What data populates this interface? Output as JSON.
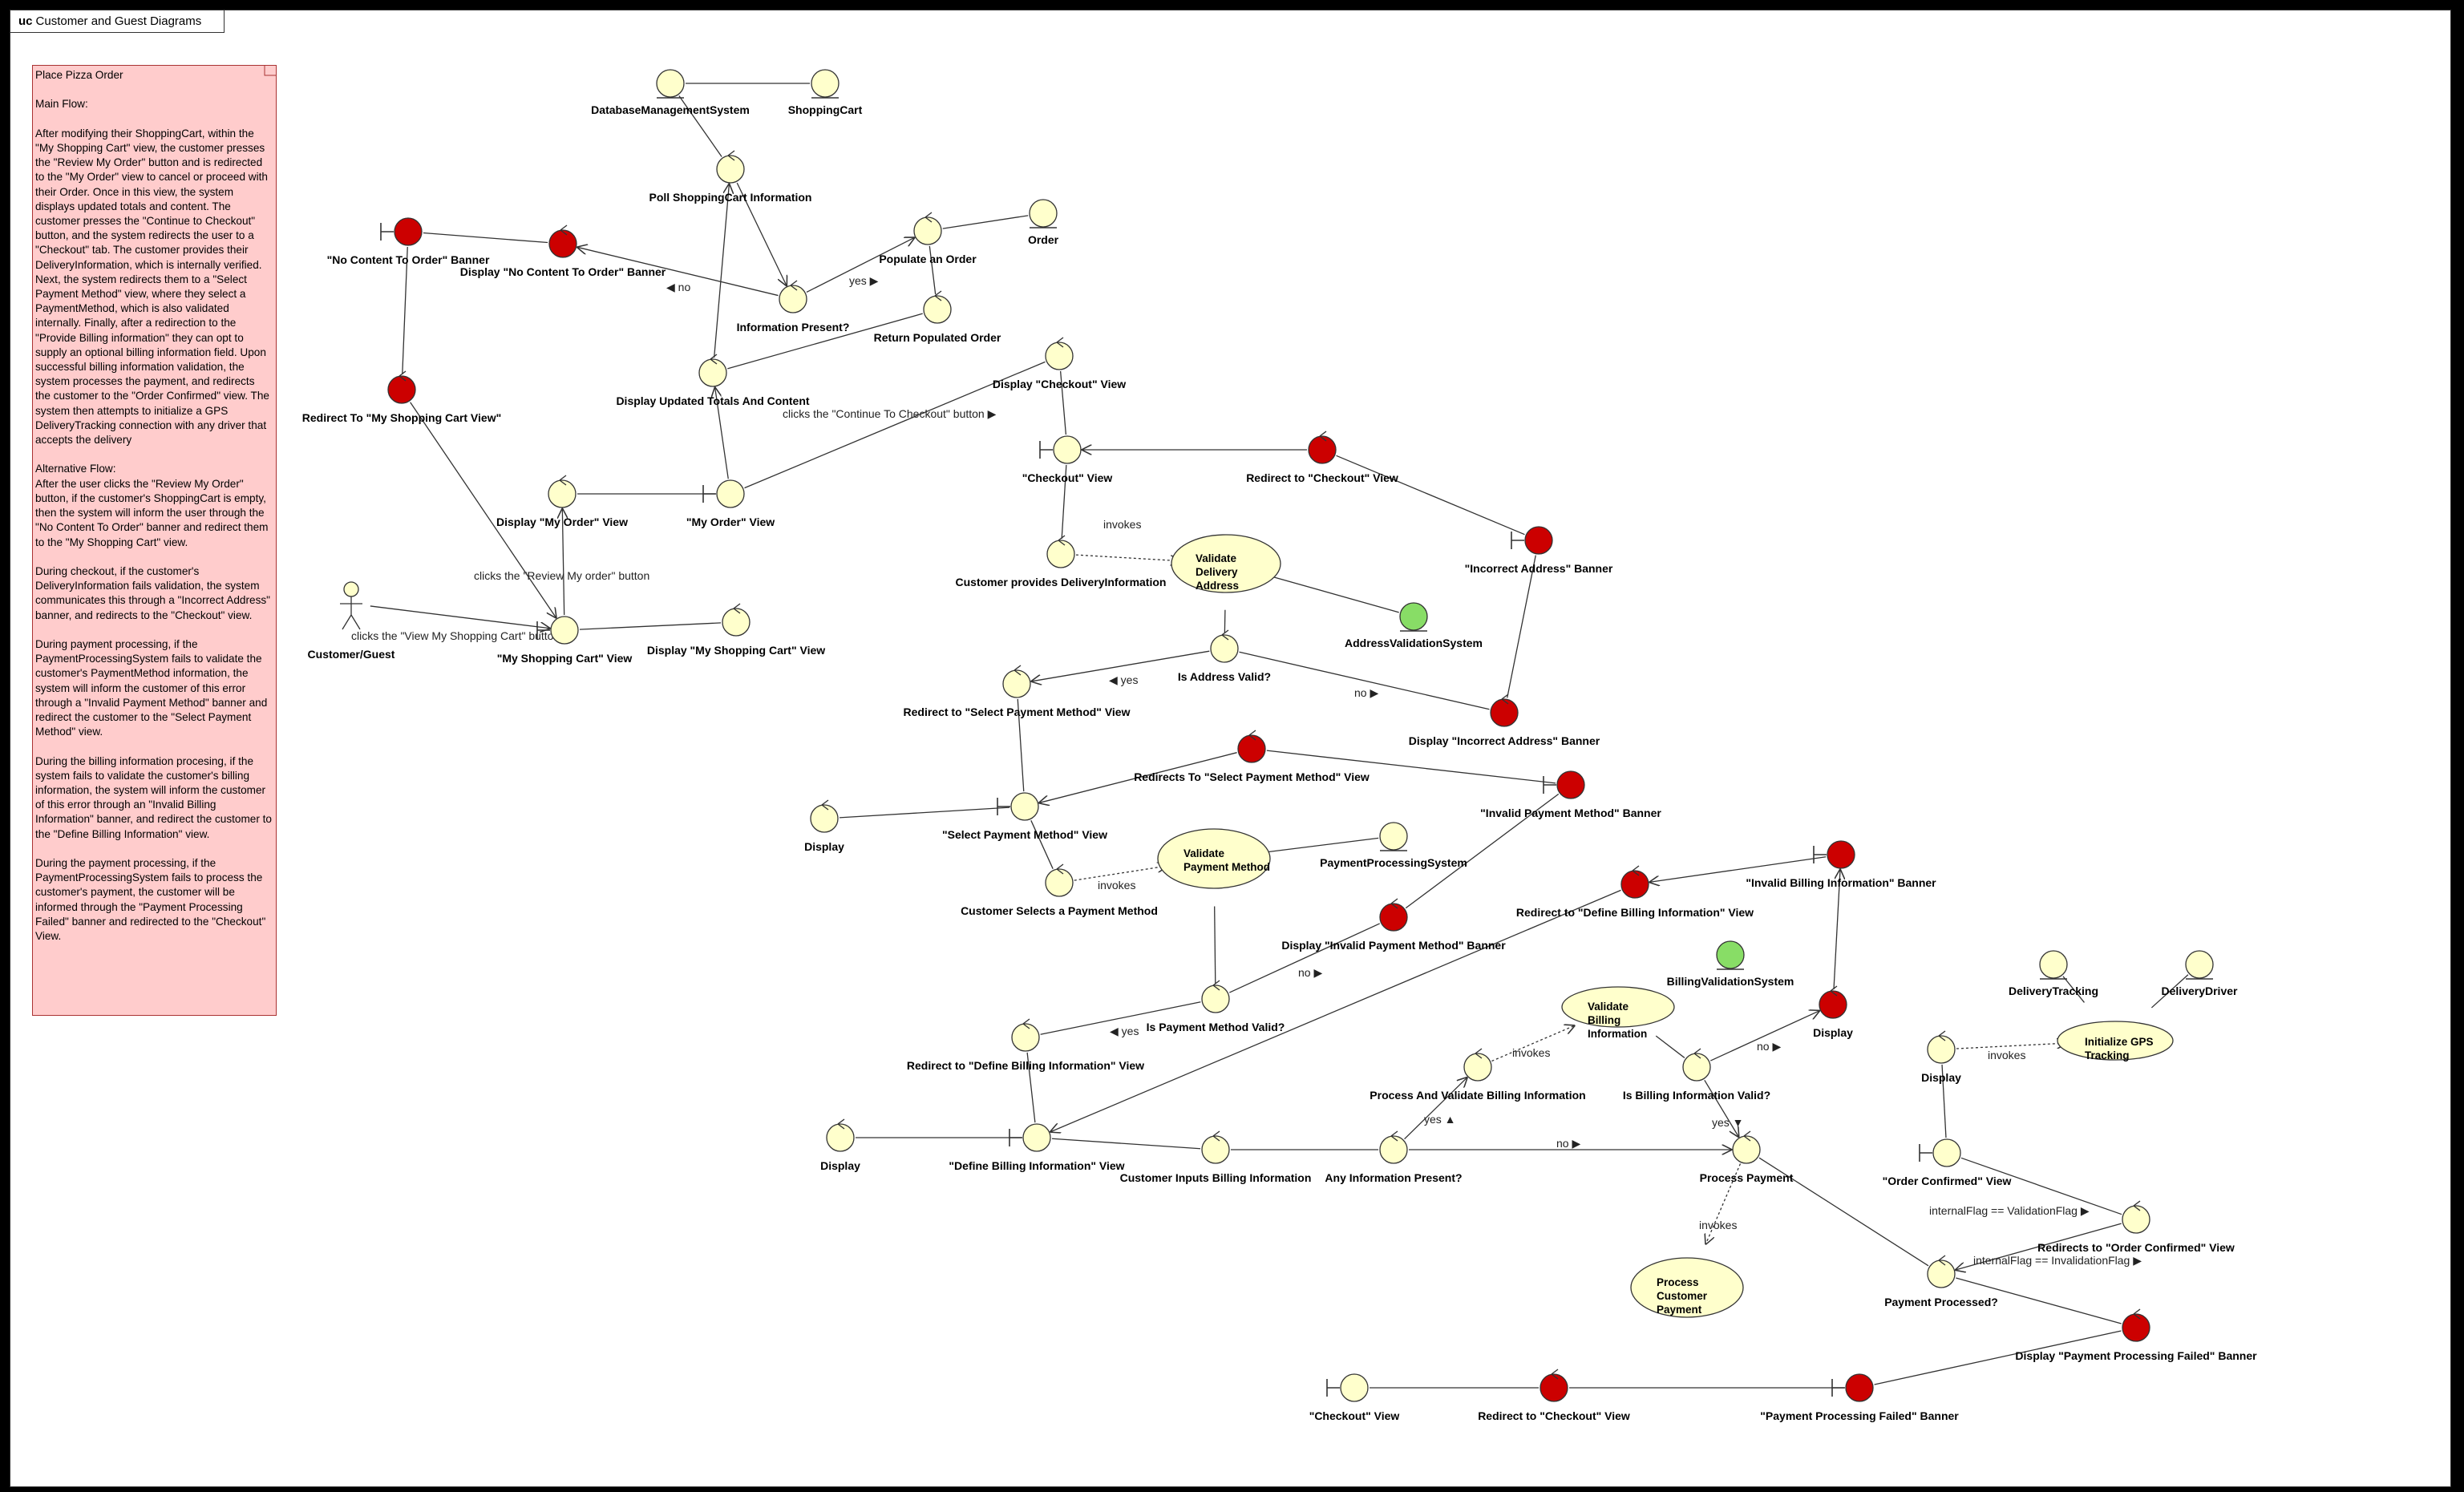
{
  "frame": {
    "keyword": "uc",
    "title": "Customer and Guest Diagrams"
  },
  "note": {
    "text": "Place Pizza Order\n\nMain Flow:\n\nAfter modifying their ShoppingCart, within the \"My Shopping Cart\" view, the customer presses the \"Review My Order\" button and is redirected to the \"My Order\" view to cancel or proceed with their Order. Once in this view, the system displays updated totals and content. The customer presses the \"Continue to Checkout\" button, and the system redirects the user to a \"Checkout\" tab. The customer provides their DeliveryInformation, which is internally verified. Next, the system redirects them to a \"Select Payment Method\" view, where they select a PaymentMethod, which is also validated internally. Finally, after a redirection to the \"Provide Billing information\" they can opt to supply an optional billing information field. Upon successful billing information validation, the system processes the payment, and redirects the customer to the \"Order Confirmed\" view. The system then attempts to initialize a GPS DeliveryTracking connection with any driver that accepts the delivery\n\nAlternative Flow:\nAfter the user clicks the \"Review My Order\" button, if the customer's ShoppingCart is empty, then the system will inform the user through the \"No Content To Order\" banner and redirect them to the \"My Shopping Cart\" view.\n\nDuring checkout, if the customer's DeliveryInformation fails validation, the system communicates this through a \"Incorrect Address\" banner, and redirects to the \"Checkout\" view.\n\nDuring payment processing, if the PaymentProcessingSystem fails to validate the customer's PaymentMethod information, the system will inform the customer of this error through a \"Invalid Payment Method\" banner and redirect the customer to the \"Select Payment Method\" view.\n\nDuring the billing information procesing, if the system fails to validate the customer's billing information, the system will inform the customer of this error through an \"Invalid Billing Information\" banner, and redirect the customer to the \"Define Billing Information\" view.\n\nDuring the payment processing, if the PaymentProcessingSystem fails to process the customer's payment, the customer will be informed through the \"Payment Processing Failed\" banner and redirected to the \"Checkout\" View."
  },
  "colors": {
    "control": "#ffffcc",
    "error": "#cc0000",
    "system": "#88dd66",
    "usecase": "#ffffcc",
    "stroke": "#333333"
  },
  "nodes": [
    {
      "id": "actor",
      "kind": "actor",
      "label": "Customer/Guest"
    },
    {
      "id": "my_cart_view",
      "kind": "boundary",
      "label": "\"My Shopping Cart\" View"
    },
    {
      "id": "disp_my_cart",
      "kind": "control",
      "label": "Display \"My Shopping Cart\" View"
    },
    {
      "id": "disp_my_order",
      "kind": "control",
      "label": "Display \"My Order\" View"
    },
    {
      "id": "my_order_view",
      "kind": "boundary",
      "label": "\"My Order\" View"
    },
    {
      "id": "redir_my_cart",
      "kind": "control-red",
      "label": "Redirect To \"My Shopping Cart View\""
    },
    {
      "id": "no_content_banner",
      "kind": "boundary-red",
      "label": "\"No Content To Order\" Banner"
    },
    {
      "id": "disp_no_content",
      "kind": "control-red",
      "label": "Display \"No Content To Order\" Banner"
    },
    {
      "id": "dbms",
      "kind": "entity",
      "label": "DatabaseManagementSystem"
    },
    {
      "id": "shopping_cart",
      "kind": "entity",
      "label": "ShoppingCart"
    },
    {
      "id": "poll_cart",
      "kind": "control",
      "label": "Poll ShoppingCart Information"
    },
    {
      "id": "info_present",
      "kind": "control",
      "label": "Information Present?"
    },
    {
      "id": "populate_order",
      "kind": "control",
      "label": "Populate an Order"
    },
    {
      "id": "order",
      "kind": "entity",
      "label": "Order"
    },
    {
      "id": "return_order",
      "kind": "control",
      "label": "Return Populated Order"
    },
    {
      "id": "disp_totals",
      "kind": "control",
      "label": "Display Updated Totals And Content"
    },
    {
      "id": "disp_checkout",
      "kind": "control",
      "label": "Display \"Checkout\" View"
    },
    {
      "id": "checkout_view",
      "kind": "boundary",
      "label": "\"Checkout\" View"
    },
    {
      "id": "redir_checkout",
      "kind": "control-red",
      "label": "Redirect to \"Checkout\" View"
    },
    {
      "id": "incorrect_addr_banner",
      "kind": "boundary-red",
      "label": "\"Incorrect Address\" Banner"
    },
    {
      "id": "provides_delivery",
      "kind": "control",
      "label": "Customer provides DeliveryInformation"
    },
    {
      "id": "uc_validate_delivery",
      "kind": "usecase",
      "label": "Validate Delivery Address"
    },
    {
      "id": "addr_validation",
      "kind": "entity-green",
      "label": "AddressValidationSystem"
    },
    {
      "id": "addr_valid",
      "kind": "control",
      "label": "Is Address Valid?"
    },
    {
      "id": "disp_incorrect_addr",
      "kind": "control-red",
      "label": "Display \"Incorrect Address\" Banner"
    },
    {
      "id": "redir_select_pm",
      "kind": "control",
      "label": "Redirect to \"Select Payment Method\" View"
    },
    {
      "id": "redir_select_pm_red",
      "kind": "control-red",
      "label": "Redirects To \"Select Payment Method\" View"
    },
    {
      "id": "invalid_pm_banner",
      "kind": "boundary-red",
      "label": "\"Invalid Payment Method\" Banner"
    },
    {
      "id": "disp_1",
      "kind": "control",
      "label": "Display"
    },
    {
      "id": "select_pm_view",
      "kind": "boundary",
      "label": "\"Select Payment Method\" View"
    },
    {
      "id": "selects_pm",
      "kind": "control",
      "label": "Customer Selects a Payment Method"
    },
    {
      "id": "uc_validate_pm",
      "kind": "usecase",
      "label": "Validate Payment Method"
    },
    {
      "id": "pps",
      "kind": "entity",
      "label": "PaymentProcessingSystem"
    },
    {
      "id": "disp_invalid_pm",
      "kind": "control-red",
      "label": "Display \"Invalid Payment Method\" Banner"
    },
    {
      "id": "pm_valid",
      "kind": "control",
      "label": "Is Payment Method Valid?"
    },
    {
      "id": "redir_define_billing",
      "kind": "control",
      "label": "Redirect to \"Define Billing Information\" View"
    },
    {
      "id": "redir_define_billing_red",
      "kind": "control-red",
      "label": "Redirect to \"Define Billing Information\" View"
    },
    {
      "id": "invalid_billing_banner",
      "kind": "boundary-red",
      "label": "\"Invalid Billing Information\" Banner"
    },
    {
      "id": "billing_validation",
      "kind": "entity-green",
      "label": "BillingValidationSystem"
    },
    {
      "id": "uc_validate_billing",
      "kind": "usecase",
      "label": "Validate Billing Information"
    },
    {
      "id": "disp_red_billing",
      "kind": "control-red",
      "label": "Display"
    },
    {
      "id": "disp_2",
      "kind": "control",
      "label": "Display"
    },
    {
      "id": "define_billing_view",
      "kind": "boundary",
      "label": "\"Define Billing Information\" View"
    },
    {
      "id": "inputs_billing",
      "kind": "control",
      "label": "Customer Inputs Billing Information"
    },
    {
      "id": "any_info",
      "kind": "control",
      "label": "Any Information Present?"
    },
    {
      "id": "process_validate_billing",
      "kind": "control",
      "label": "Process And Validate Billing Information"
    },
    {
      "id": "billing_valid",
      "kind": "control",
      "label": "Is Billing Information Valid?"
    },
    {
      "id": "process_payment",
      "kind": "control",
      "label": "Process Payment"
    },
    {
      "id": "uc_process_payment",
      "kind": "usecase",
      "label": "Process Customer Payment"
    },
    {
      "id": "delivery_tracking",
      "kind": "entity",
      "label": "DeliveryTracking"
    },
    {
      "id": "delivery_driver",
      "kind": "entity",
      "label": "DeliveryDriver"
    },
    {
      "id": "disp_3",
      "kind": "control",
      "label": "Display"
    },
    {
      "id": "uc_init_gps",
      "kind": "usecase",
      "label": "Initialize GPS Tracking"
    },
    {
      "id": "order_confirmed_view",
      "kind": "boundary",
      "label": "\"Order Confirmed\" View"
    },
    {
      "id": "redir_order_confirmed",
      "kind": "control",
      "label": "Redirects to \"Order Confirmed\" View"
    },
    {
      "id": "payment_processed",
      "kind": "control",
      "label": "Payment Processed?"
    },
    {
      "id": "disp_payment_failed",
      "kind": "control-red",
      "label": "Display \"Payment Processing Failed\" Banner"
    },
    {
      "id": "checkout_view_2",
      "kind": "boundary",
      "label": "\"Checkout\" View"
    },
    {
      "id": "redir_checkout_2",
      "kind": "control-red",
      "label": "Redirect to \"Checkout\" View"
    },
    {
      "id": "payment_failed_banner",
      "kind": "boundary-red",
      "label": "\"Payment Processing Failed\" Banner"
    }
  ],
  "edge_labels": [
    {
      "id": "e_click_cart",
      "text": "clicks the \"View My Shopping Cart\" button",
      "arrow": "▶"
    },
    {
      "id": "e_click_review",
      "text": "clicks the \"Review My order\" button",
      "arrow": ""
    },
    {
      "id": "e_click_continue",
      "text": "clicks the \"Continue To Checkout\" button",
      "arrow": "▶"
    },
    {
      "id": "e_no_1",
      "text": "no",
      "arrow": "◀"
    },
    {
      "id": "e_yes_1",
      "text": "yes",
      "arrow": "▶"
    },
    {
      "id": "e_invokes_1",
      "text": "invokes",
      "arrow": ""
    },
    {
      "id": "e_yes_2",
      "text": "yes",
      "arrow": "◀"
    },
    {
      "id": "e_no_2",
      "text": "no",
      "arrow": "▶"
    },
    {
      "id": "e_invokes_2",
      "text": "invokes",
      "arrow": ""
    },
    {
      "id": "e_no_3",
      "text": "no",
      "arrow": "▶"
    },
    {
      "id": "e_yes_3",
      "text": "yes",
      "arrow": "◀"
    },
    {
      "id": "e_invokes_3",
      "text": "invokes",
      "arrow": ""
    },
    {
      "id": "e_no_4",
      "text": "no",
      "arrow": "▶"
    },
    {
      "id": "e_yes_4",
      "text": "yes",
      "arrow": "▲"
    },
    {
      "id": "e_yes_5",
      "text": "yes",
      "arrow": "▼"
    },
    {
      "id": "e_no_5",
      "text": "no",
      "arrow": "▶"
    },
    {
      "id": "e_invokes_4",
      "text": "invokes",
      "arrow": ""
    },
    {
      "id": "e_invokes_5",
      "text": "invokes",
      "arrow": ""
    },
    {
      "id": "e_flag_valid",
      "text": "internalFlag == ValidationFlag",
      "arrow": "▶"
    },
    {
      "id": "e_flag_invalid",
      "text": "internalFlag == InvalidationFlag",
      "arrow": "▶"
    }
  ]
}
